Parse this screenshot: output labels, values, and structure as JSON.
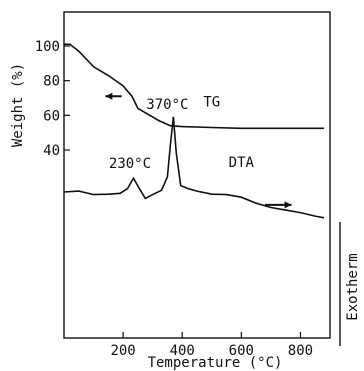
{
  "chart_data": [
    {
      "type": "line",
      "panel": "TG",
      "xlabel": "Temperature (°C)",
      "ylabel": "Weight (%)",
      "xlim": [
        0,
        900
      ],
      "ylim": [
        30,
        112
      ],
      "x_ticks": [
        200,
        400,
        600,
        800
      ],
      "y_ticks": [
        40,
        60,
        80,
        100
      ],
      "grid": false,
      "series": [
        {
          "name": "TG",
          "x": [
            0,
            20,
            50,
            100,
            150,
            200,
            230,
            250,
            280,
            320,
            360,
            400,
            500,
            600,
            700,
            800,
            880
          ],
          "y": [
            101,
            101,
            97,
            88,
            83,
            77,
            71,
            64,
            61,
            57,
            54,
            53.5,
            53,
            52.5,
            52.5,
            52.5,
            52.5
          ]
        }
      ],
      "annotations": [
        {
          "text": "TG",
          "x": 500,
          "y": 68
        }
      ],
      "arrow": {
        "direction": "left",
        "x_from": 195,
        "x_to": 140,
        "y": 71
      }
    },
    {
      "type": "line",
      "panel": "DTA",
      "ylabel_right": "Exotherm",
      "xlim": [
        0,
        900
      ],
      "series": [
        {
          "name": "DTA",
          "x": [
            0,
            50,
            100,
            150,
            190,
            215,
            235,
            255,
            275,
            300,
            330,
            350,
            360,
            370,
            380,
            395,
            420,
            450,
            500,
            550,
            600,
            650,
            700,
            750,
            800,
            850,
            880
          ],
          "y": [
            0,
            0.2,
            -0.6,
            -0.5,
            -0.3,
            0.8,
            3.2,
            0.8,
            -1.5,
            -0.6,
            0.4,
            3.5,
            11,
            17.5,
            9,
            1.5,
            0.8,
            0.2,
            -0.5,
            -0.6,
            -1.2,
            -2.6,
            -3.6,
            -4.2,
            -4.8,
            -5.6,
            -6.0
          ]
        }
      ],
      "annotations": [
        {
          "text": "230°C",
          "x": 230,
          "peak": 3.2
        },
        {
          "text": "370°C",
          "x": 370,
          "peak": 17.5
        },
        {
          "text": "DTA",
          "x": 600
        }
      ],
      "arrow": {
        "direction": "right",
        "x_from": 680,
        "x_to": 770,
        "y": -3.0
      }
    }
  ]
}
